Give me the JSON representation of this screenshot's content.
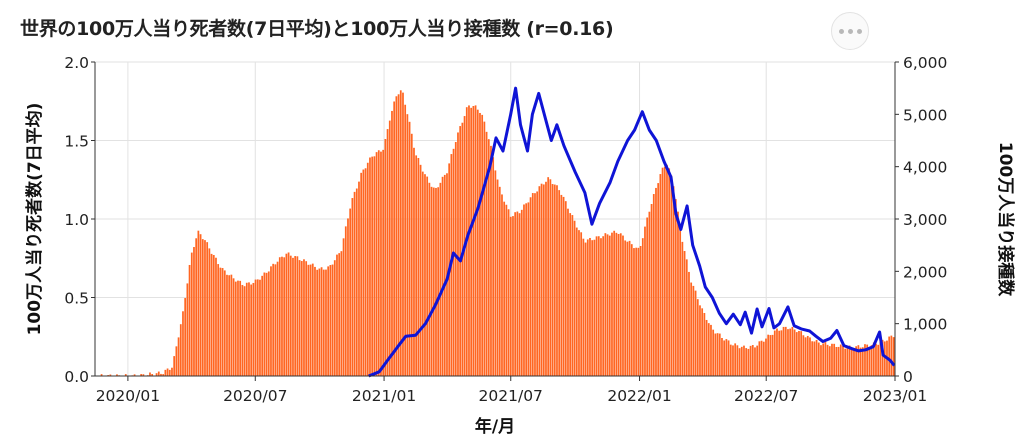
{
  "title": "世界の100万人当り死者数(7日平均)と100万人当り接種数 (r=0.16)",
  "menu_icon": "more-dots-icon",
  "chart_data": {
    "type": "bar+line",
    "title": "世界の100万人当り死者数(7日平均)と100万人当り接種数 (r=0.16)",
    "xlabel": "年/月",
    "ylabel_left": "100万人当り死者数(7日平均)",
    "ylabel_right": "100万人当り接種数",
    "x_ticks": [
      "2020/01",
      "2020/07",
      "2021/01",
      "2021/07",
      "2022/01",
      "2022/07",
      "2023/01"
    ],
    "y_left_ticks": [
      "0.0",
      "0.5",
      "1.0",
      "1.5",
      "2.0"
    ],
    "y_right_ticks": [
      "0",
      "1,000",
      "2,000",
      "3,000",
      "4,000",
      "5,000",
      "6,000"
    ],
    "y_left_range": [
      0,
      2.0
    ],
    "y_right_range": [
      0,
      6000
    ],
    "x_range": [
      "2019-11-15",
      "2023-01-01"
    ],
    "grid": true,
    "colors": {
      "bars": "#ff6622",
      "line": "#0f14d6",
      "grid": "#e2e2e2"
    },
    "series": [
      {
        "type": "bar",
        "axis": "left",
        "points": [
          [
            "2019-11-20",
            0.0
          ],
          [
            "2020-01-15",
            0.0
          ],
          [
            "2020-02-01",
            0.01
          ],
          [
            "2020-02-20",
            0.02
          ],
          [
            "2020-03-05",
            0.06
          ],
          [
            "2020-03-20",
            0.4
          ],
          [
            "2020-03-31",
            0.75
          ],
          [
            "2020-04-10",
            0.92
          ],
          [
            "2020-04-20",
            0.87
          ],
          [
            "2020-05-01",
            0.78
          ],
          [
            "2020-05-15",
            0.68
          ],
          [
            "2020-06-01",
            0.62
          ],
          [
            "2020-06-15",
            0.58
          ],
          [
            "2020-07-01",
            0.6
          ],
          [
            "2020-07-15",
            0.65
          ],
          [
            "2020-08-01",
            0.73
          ],
          [
            "2020-08-15",
            0.78
          ],
          [
            "2020-09-01",
            0.75
          ],
          [
            "2020-09-15",
            0.72
          ],
          [
            "2020-10-01",
            0.68
          ],
          [
            "2020-10-15",
            0.69
          ],
          [
            "2020-11-01",
            0.8
          ],
          [
            "2020-11-15",
            1.1
          ],
          [
            "2020-12-01",
            1.3
          ],
          [
            "2020-12-15",
            1.4
          ],
          [
            "2021-01-01",
            1.45
          ],
          [
            "2021-01-10",
            1.65
          ],
          [
            "2021-01-20",
            1.8
          ],
          [
            "2021-01-27",
            1.82
          ],
          [
            "2021-02-05",
            1.65
          ],
          [
            "2021-02-15",
            1.42
          ],
          [
            "2021-03-01",
            1.28
          ],
          [
            "2021-03-15",
            1.18
          ],
          [
            "2021-04-01",
            1.3
          ],
          [
            "2021-04-15",
            1.52
          ],
          [
            "2021-05-01",
            1.72
          ],
          [
            "2021-05-10",
            1.72
          ],
          [
            "2021-05-20",
            1.68
          ],
          [
            "2021-06-01",
            1.5
          ],
          [
            "2021-06-15",
            1.2
          ],
          [
            "2021-07-01",
            1.02
          ],
          [
            "2021-07-15",
            1.05
          ],
          [
            "2021-08-01",
            1.15
          ],
          [
            "2021-08-15",
            1.22
          ],
          [
            "2021-08-25",
            1.26
          ],
          [
            "2021-09-10",
            1.18
          ],
          [
            "2021-10-01",
            0.98
          ],
          [
            "2021-10-15",
            0.86
          ],
          [
            "2021-11-01",
            0.88
          ],
          [
            "2021-11-15",
            0.9
          ],
          [
            "2021-12-01",
            0.92
          ],
          [
            "2021-12-15",
            0.86
          ],
          [
            "2022-01-01",
            0.8
          ],
          [
            "2022-01-15",
            1.05
          ],
          [
            "2022-02-01",
            1.3
          ],
          [
            "2022-02-10",
            1.36
          ],
          [
            "2022-02-20",
            1.2
          ],
          [
            "2022-03-01",
            0.92
          ],
          [
            "2022-03-15",
            0.62
          ],
          [
            "2022-04-01",
            0.42
          ],
          [
            "2022-04-15",
            0.3
          ],
          [
            "2022-05-01",
            0.24
          ],
          [
            "2022-05-15",
            0.2
          ],
          [
            "2022-06-01",
            0.18
          ],
          [
            "2022-06-15",
            0.19
          ],
          [
            "2022-07-01",
            0.24
          ],
          [
            "2022-07-15",
            0.29
          ],
          [
            "2022-08-01",
            0.31
          ],
          [
            "2022-08-15",
            0.29
          ],
          [
            "2022-09-01",
            0.24
          ],
          [
            "2022-09-15",
            0.21
          ],
          [
            "2022-10-01",
            0.2
          ],
          [
            "2022-10-15",
            0.19
          ],
          [
            "2022-11-01",
            0.18
          ],
          [
            "2022-11-15",
            0.19
          ],
          [
            "2022-12-01",
            0.2
          ],
          [
            "2022-12-15",
            0.22
          ],
          [
            "2022-12-31",
            0.26
          ]
        ]
      },
      {
        "type": "line",
        "axis": "right",
        "points": [
          [
            "2020-12-10",
            0
          ],
          [
            "2020-12-25",
            80
          ],
          [
            "2021-01-05",
            280
          ],
          [
            "2021-01-20",
            550
          ],
          [
            "2021-02-01",
            760
          ],
          [
            "2021-02-15",
            780
          ],
          [
            "2021-03-01",
            1000
          ],
          [
            "2021-03-15",
            1350
          ],
          [
            "2021-04-01",
            1850
          ],
          [
            "2021-04-10",
            2350
          ],
          [
            "2021-04-20",
            2200
          ],
          [
            "2021-05-01",
            2700
          ],
          [
            "2021-05-15",
            3200
          ],
          [
            "2021-06-01",
            4000
          ],
          [
            "2021-06-10",
            4550
          ],
          [
            "2021-06-20",
            4300
          ],
          [
            "2021-07-01",
            5000
          ],
          [
            "2021-07-08",
            5500
          ],
          [
            "2021-07-15",
            4800
          ],
          [
            "2021-07-25",
            4300
          ],
          [
            "2021-08-01",
            5000
          ],
          [
            "2021-08-10",
            5400
          ],
          [
            "2021-08-20",
            4900
          ],
          [
            "2021-08-28",
            4500
          ],
          [
            "2021-09-05",
            4800
          ],
          [
            "2021-09-15",
            4400
          ],
          [
            "2021-10-01",
            3900
          ],
          [
            "2021-10-15",
            3500
          ],
          [
            "2021-10-25",
            2900
          ],
          [
            "2021-11-05",
            3300
          ],
          [
            "2021-11-20",
            3700
          ],
          [
            "2021-12-01",
            4100
          ],
          [
            "2021-12-15",
            4500
          ],
          [
            "2021-12-25",
            4700
          ],
          [
            "2022-01-05",
            5050
          ],
          [
            "2022-01-15",
            4700
          ],
          [
            "2022-01-25",
            4500
          ],
          [
            "2022-02-05",
            4100
          ],
          [
            "2022-02-15",
            3800
          ],
          [
            "2022-02-22",
            3100
          ],
          [
            "2022-03-01",
            2800
          ],
          [
            "2022-03-10",
            3250
          ],
          [
            "2022-03-18",
            2500
          ],
          [
            "2022-03-28",
            2100
          ],
          [
            "2022-04-05",
            1700
          ],
          [
            "2022-04-15",
            1500
          ],
          [
            "2022-04-25",
            1200
          ],
          [
            "2022-05-05",
            1000
          ],
          [
            "2022-05-15",
            1180
          ],
          [
            "2022-05-25",
            980
          ],
          [
            "2022-06-01",
            1220
          ],
          [
            "2022-06-10",
            820
          ],
          [
            "2022-06-18",
            1280
          ],
          [
            "2022-06-25",
            940
          ],
          [
            "2022-07-05",
            1290
          ],
          [
            "2022-07-12",
            920
          ],
          [
            "2022-07-20",
            1000
          ],
          [
            "2022-08-01",
            1320
          ],
          [
            "2022-08-10",
            960
          ],
          [
            "2022-08-20",
            900
          ],
          [
            "2022-09-01",
            860
          ],
          [
            "2022-09-10",
            760
          ],
          [
            "2022-09-20",
            660
          ],
          [
            "2022-10-01",
            720
          ],
          [
            "2022-10-10",
            870
          ],
          [
            "2022-10-20",
            580
          ],
          [
            "2022-11-01",
            520
          ],
          [
            "2022-11-10",
            480
          ],
          [
            "2022-11-20",
            500
          ],
          [
            "2022-12-01",
            560
          ],
          [
            "2022-12-10",
            840
          ],
          [
            "2022-12-15",
            400
          ],
          [
            "2022-12-25",
            300
          ],
          [
            "2022-12-31",
            200
          ]
        ]
      }
    ]
  }
}
